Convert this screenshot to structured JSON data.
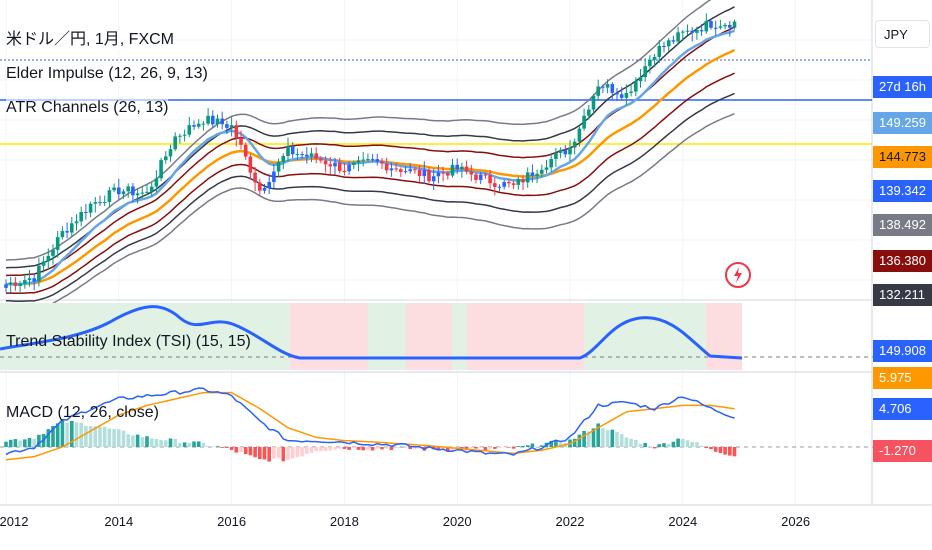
{
  "legend": {
    "symbol": "米ドル／円, 1月, FXCM",
    "elder": "Elder Impulse (12, 26, 9, 13)",
    "atr": "ATR Channels (26, 13)",
    "tsi": "Trend Stability Index (TSI) (15, 15)",
    "macd": "MACD (12, 26, close)"
  },
  "currency": "JPY",
  "price_tags": [
    {
      "text": "27d 16h",
      "bg": "#2962ff",
      "fg": "#ffffff"
    },
    {
      "text": "149.259",
      "bg": "#64a6e8",
      "fg": "#ffffff"
    },
    {
      "text": "144.773",
      "bg": "#ff9800",
      "fg": "#131722"
    },
    {
      "text": "139.342",
      "bg": "#2962ff",
      "fg": "#ffffff"
    },
    {
      "text": "138.492",
      "bg": "#787b86",
      "fg": "#ffffff"
    },
    {
      "text": "136.380",
      "bg": "#880e0e",
      "fg": "#ffffff"
    },
    {
      "text": "132.211",
      "bg": "#363a45",
      "fg": "#ffffff"
    },
    {
      "text": "149.908",
      "bg": "#2962ff",
      "fg": "#ffffff"
    },
    {
      "text": "5.975",
      "bg": "#ff9800",
      "fg": "#ffffff"
    },
    {
      "text": "4.706",
      "bg": "#2962ff",
      "fg": "#ffffff"
    },
    {
      "text": "-1.270",
      "bg": "#f7525f",
      "fg": "#ffffff"
    }
  ],
  "x_axis_labels": [
    "2012",
    "2014",
    "2016",
    "2018",
    "2020",
    "2022",
    "2024",
    "2026"
  ],
  "colors": {
    "up": "#089981",
    "down": "#f23645",
    "neutral": "#2962ff",
    "ema_fast": "#64a6e8",
    "ema_slow": "#ff9800",
    "macd_line": "#2962ff",
    "signal_line": "#ff9800",
    "tsi_line": "#2962ff",
    "tsi_bull_bg": "#e1f2e4",
    "tsi_bear_bg": "#fcdde0",
    "hline_blue": "#2962ff",
    "hline_yellow": "#ffe700"
  },
  "chart_data": {
    "type": "candlestick",
    "series_description": "USD/JPY monthly closes 2012-2024 (approximate)",
    "x": [
      "2012-01",
      "2012-07",
      "2013-01",
      "2013-07",
      "2014-01",
      "2014-07",
      "2015-01",
      "2015-07",
      "2016-01",
      "2016-07",
      "2017-01",
      "2017-07",
      "2018-01",
      "2018-07",
      "2019-01",
      "2019-07",
      "2020-01",
      "2020-07",
      "2021-01",
      "2021-07",
      "2022-01",
      "2022-07",
      "2023-01",
      "2023-07",
      "2024-01",
      "2024-07",
      "2024-12"
    ],
    "close": [
      76.5,
      78.5,
      91,
      99,
      103,
      102,
      118,
      123,
      121,
      103,
      114,
      112,
      109,
      111,
      109,
      107,
      109,
      106,
      104,
      110,
      115,
      133,
      130,
      142,
      147,
      150,
      150.2
    ],
    "macd": [
      -1,
      0,
      4,
      6,
      7.5,
      8,
      8.5,
      9,
      8,
      4,
      1,
      1,
      0.8,
      0.5,
      0.3,
      -0.2,
      -0.5,
      -1,
      -1.2,
      0,
      1.5,
      6.5,
      7,
      6,
      8,
      6,
      4.706
    ],
    "signal": [
      -2,
      -1.5,
      0,
      2.5,
      5,
      6.5,
      7.5,
      8.5,
      8.5,
      6,
      3,
      1.5,
      1,
      0.8,
      0.5,
      0.2,
      -0.2,
      -0.6,
      -1,
      -0.5,
      0.5,
      3,
      5.5,
      6,
      6.5,
      6.5,
      5.975
    ],
    "tsi_last": 149.908
  }
}
